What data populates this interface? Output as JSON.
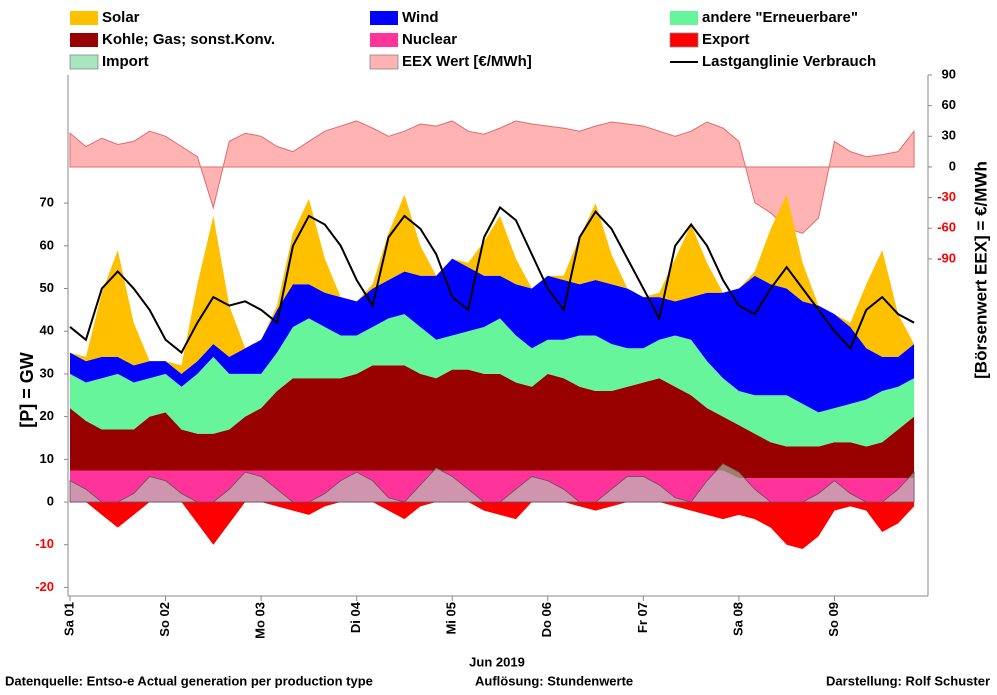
{
  "chart_data": {
    "type": "area",
    "xlabel": "Jun 2019",
    "ylabel": "[P]  =  GW",
    "y2label": "[Börsenwert  EEX]  =  €/MWh",
    "notes": [
      "Datenquelle: Entso-e  Actual generation per production type",
      "Auflösung: Stundenwerte",
      "Darstellung:  Rolf Schuster"
    ],
    "ylim": [
      -22,
      100
    ],
    "yticks": [
      -20,
      -10,
      0,
      10,
      20,
      30,
      40,
      50,
      60,
      70
    ],
    "y2lim": [
      -420,
      90
    ],
    "y2ticks": [
      -90,
      -60,
      -30,
      0,
      30,
      60,
      90
    ],
    "negative_tick_color": "#ff0000",
    "categories": [
      "Sa 01",
      null,
      null,
      null,
      null,
      null,
      "So 02",
      null,
      null,
      null,
      null,
      null,
      "Mo 03",
      null,
      null,
      null,
      null,
      null,
      "Di 04",
      null,
      null,
      null,
      null,
      null,
      "Mi 05",
      null,
      null,
      null,
      null,
      null,
      "Do 06",
      null,
      null,
      null,
      null,
      null,
      "Fr 07",
      null,
      null,
      null,
      null,
      null,
      "Sa 08",
      null,
      null,
      null,
      null,
      null,
      "So 09",
      null,
      null,
      null,
      null,
      null
    ],
    "series": [
      {
        "name": "Solar",
        "kind": "stacked",
        "color": "#ffc000",
        "values": [
          0,
          1,
          15,
          25,
          10,
          0,
          0,
          2,
          18,
          30,
          12,
          0,
          0,
          1,
          12,
          20,
          8,
          0,
          0,
          1,
          11,
          18,
          7,
          0,
          0,
          1,
          8,
          14,
          6,
          0,
          0,
          1,
          11,
          18,
          7,
          0,
          0,
          1,
          10,
          17,
          7,
          0,
          0,
          1,
          13,
          22,
          9,
          0,
          0,
          1,
          15,
          25,
          10,
          0
        ]
      },
      {
        "name": "Wind",
        "kind": "stacked",
        "color": "#0000ff",
        "values": [
          5,
          5,
          5,
          4,
          4,
          4,
          3,
          3,
          3,
          3,
          4,
          6,
          8,
          10,
          10,
          8,
          8,
          9,
          8,
          9,
          9,
          10,
          12,
          15,
          18,
          15,
          12,
          10,
          12,
          14,
          15,
          14,
          12,
          13,
          14,
          14,
          12,
          10,
          8,
          10,
          16,
          20,
          24,
          28,
          26,
          25,
          24,
          25,
          22,
          18,
          12,
          8,
          7,
          8
        ]
      },
      {
        "name": "andere \"Erneuerbare\"",
        "kind": "stacked",
        "color": "#66f59a",
        "values": [
          8,
          9,
          12,
          13,
          11,
          9,
          9,
          10,
          14,
          18,
          13,
          10,
          8,
          9,
          12,
          14,
          12,
          10,
          9,
          9,
          11,
          12,
          11,
          9,
          8,
          9,
          11,
          13,
          11,
          9,
          8,
          9,
          12,
          13,
          11,
          9,
          8,
          9,
          12,
          13,
          11,
          9,
          8,
          9,
          11,
          12,
          10,
          8,
          8,
          9,
          11,
          12,
          10,
          9
        ]
      },
      {
        "name": "Kohle; Gas; sonst.Konv.",
        "kind": "stacked",
        "color": "#990000",
        "values": [
          14.6,
          11.6,
          9.6,
          9.6,
          9.6,
          12.6,
          13.6,
          9.6,
          8.6,
          8.6,
          9.6,
          12.6,
          14.6,
          18.6,
          21.6,
          21.6,
          21.6,
          21.6,
          22.6,
          24.6,
          24.6,
          24.6,
          22.6,
          21.6,
          23.6,
          23.6,
          22.6,
          22.6,
          20.6,
          19.6,
          22.6,
          21.6,
          19.6,
          18.6,
          18.6,
          19.6,
          20.6,
          21.6,
          19.6,
          17.6,
          14.6,
          12.6,
          12.4,
          10.4,
          8.4,
          7.4,
          7.4,
          7.4,
          8.4,
          8.4,
          7.4,
          8.4,
          11.4,
          14.4
        ]
      },
      {
        "name": "Nuclear",
        "kind": "stacked",
        "color": "#ff3399",
        "values": [
          7.4,
          7.4,
          7.4,
          7.4,
          7.4,
          7.4,
          7.4,
          7.4,
          7.4,
          7.4,
          7.4,
          7.4,
          7.4,
          7.4,
          7.4,
          7.4,
          7.4,
          7.4,
          7.4,
          7.4,
          7.4,
          7.4,
          7.4,
          7.4,
          7.4,
          7.4,
          7.4,
          7.4,
          7.4,
          7.4,
          7.4,
          7.4,
          7.4,
          7.4,
          7.4,
          7.4,
          7.4,
          7.4,
          7.4,
          7.4,
          7.4,
          7.4,
          5.6,
          5.6,
          5.6,
          5.6,
          5.6,
          5.6,
          5.6,
          5.6,
          5.6,
          5.6,
          5.6,
          5.6
        ]
      },
      {
        "name": "Export",
        "kind": "area",
        "color": "#ff0000",
        "values": [
          0,
          0,
          -3,
          -6,
          -3,
          0,
          0,
          0,
          -5,
          -10,
          -5,
          0,
          0,
          -1,
          -2,
          -3,
          -1,
          0,
          0,
          0,
          -2,
          -4,
          -1,
          0,
          0,
          0,
          -2,
          -3,
          -4,
          0,
          0,
          0,
          -1,
          -2,
          -1,
          0,
          0,
          0,
          -1,
          -2,
          -3,
          -4,
          -3,
          -4,
          -6,
          -10,
          -11,
          -8,
          -2,
          -1,
          -2,
          -7,
          -5,
          -1
        ]
      },
      {
        "name": "Import",
        "kind": "overlay",
        "color": "#a8e6c0",
        "values": [
          5,
          3,
          0,
          0,
          2,
          6,
          5,
          2,
          0,
          0,
          3,
          7,
          6,
          3,
          0,
          0,
          2,
          5,
          7,
          5,
          1,
          0,
          4,
          8,
          6,
          3,
          0,
          0,
          3,
          6,
          5,
          3,
          0,
          0,
          3,
          6,
          6,
          4,
          1,
          0,
          5,
          9,
          7,
          3,
          0,
          0,
          0,
          2,
          5,
          2,
          0,
          0,
          3,
          7
        ]
      },
      {
        "name": "EEX Wert [€/MWh]",
        "kind": "area",
        "axis": "y2",
        "color": "#ffb3b3",
        "values": [
          33,
          20,
          28,
          22,
          25,
          35,
          30,
          20,
          10,
          -40,
          25,
          33,
          30,
          20,
          15,
          25,
          35,
          40,
          45,
          38,
          30,
          35,
          42,
          40,
          45,
          35,
          32,
          38,
          45,
          42,
          40,
          38,
          35,
          40,
          44,
          42,
          40,
          35,
          30,
          35,
          44,
          38,
          25,
          -35,
          -45,
          -60,
          -65,
          -50,
          25,
          15,
          10,
          12,
          15,
          35
        ]
      },
      {
        "name": "Lastganglinie Verbrauch",
        "kind": "line",
        "color": "#000000",
        "values": [
          41,
          38,
          50,
          54,
          50,
          45,
          38,
          35,
          42,
          48,
          46,
          47,
          45,
          42,
          60,
          67,
          65,
          60,
          52,
          46,
          62,
          67,
          64,
          58,
          48,
          45,
          62,
          69,
          66,
          58,
          50,
          45,
          62,
          68,
          64,
          57,
          50,
          43,
          60,
          65,
          60,
          52,
          46,
          44,
          50,
          55,
          50,
          45,
          40,
          36,
          45,
          48,
          44,
          42
        ]
      }
    ]
  }
}
